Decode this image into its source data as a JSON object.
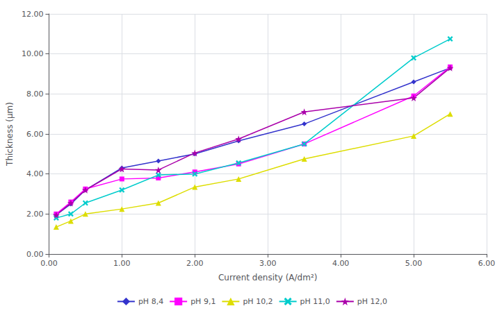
{
  "chart_data": {
    "type": "line",
    "x": [
      0.1,
      0.3,
      0.5,
      1.0,
      1.5,
      2.0,
      2.6,
      3.5,
      5.0,
      5.5
    ],
    "series": [
      {
        "name": "pH 8,4",
        "color": "#3333CC",
        "marker": "diamond",
        "values": [
          1.95,
          2.5,
          3.2,
          4.3,
          4.65,
          5.0,
          5.65,
          6.5,
          8.6,
          9.3
        ]
      },
      {
        "name": "pH 9,1",
        "color": "#FF00FF",
        "marker": "square",
        "values": [
          2.0,
          2.6,
          3.25,
          3.75,
          3.8,
          4.1,
          4.5,
          5.5,
          7.9,
          9.35
        ]
      },
      {
        "name": "pH 10,2",
        "color": "#DDDD00",
        "marker": "triangle",
        "values": [
          1.35,
          1.65,
          2.0,
          2.25,
          2.55,
          3.35,
          3.75,
          4.75,
          5.9,
          7.0
        ]
      },
      {
        "name": "pH 11,0",
        "color": "#00CCCC",
        "marker": "x",
        "values": [
          1.8,
          2.0,
          2.55,
          3.2,
          3.95,
          4.0,
          4.55,
          5.5,
          9.8,
          10.75
        ]
      },
      {
        "name": "pH 12,0",
        "color": "#AA00AA",
        "marker": "star",
        "values": [
          1.95,
          2.55,
          3.2,
          4.25,
          4.2,
          5.05,
          5.75,
          7.1,
          7.8,
          9.3
        ]
      }
    ],
    "xlabel": "Current density (A/dm²)",
    "ylabel": "Thickness (µm)",
    "xlim": [
      0.0,
      6.0
    ],
    "ylim": [
      0.0,
      12.0
    ],
    "xticks": [
      {
        "value": 0,
        "label": "0.00"
      },
      {
        "value": 1,
        "label": "1.00"
      },
      {
        "value": 2,
        "label": "2.00"
      },
      {
        "value": 3,
        "label": "3.00"
      },
      {
        "value": 4,
        "label": "4.00"
      },
      {
        "value": 5,
        "label": "5.00"
      },
      {
        "value": 6,
        "label": "6.00"
      }
    ],
    "yticks": [
      {
        "value": 0,
        "label": "0.00"
      },
      {
        "value": 2,
        "label": "2.00"
      },
      {
        "value": 4,
        "label": "4.00"
      },
      {
        "value": 6,
        "label": "6.00"
      },
      {
        "value": 8,
        "label": "8.00"
      },
      {
        "value": 10,
        "label": "10.00"
      },
      {
        "value": 12,
        "label": "12.00"
      }
    ],
    "grid": true,
    "legend": "bottom"
  }
}
